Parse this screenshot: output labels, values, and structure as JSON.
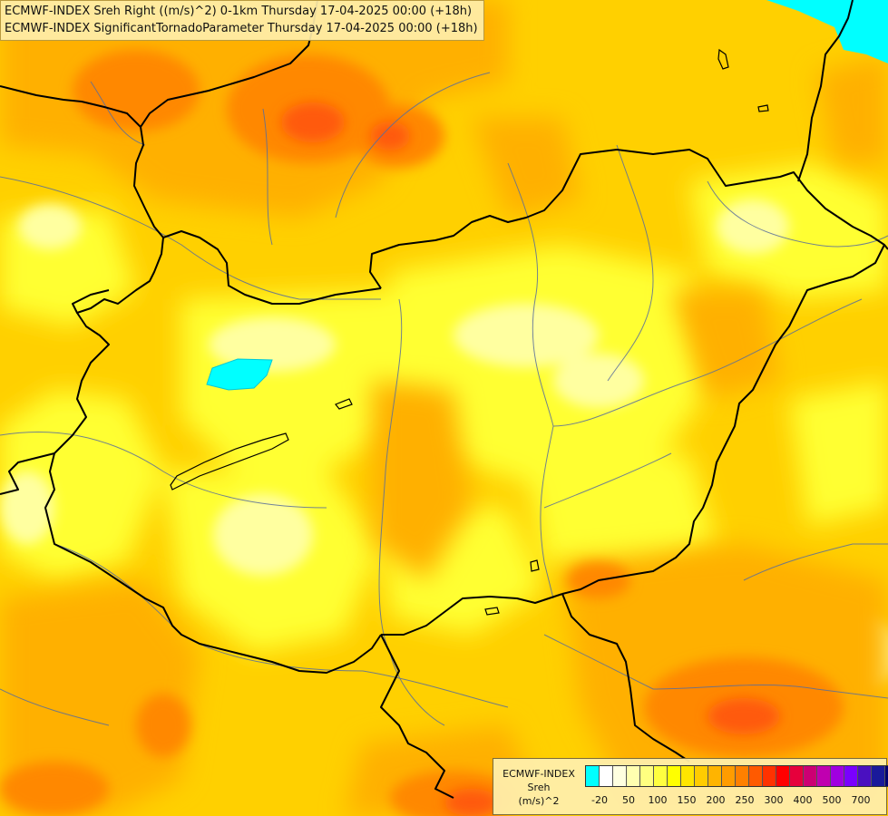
{
  "header": {
    "line1": "ECMWF-INDEX Sreh Right ((m/s)^2) 0-1km Thursday 17-04-2025 00:00 (+18h)",
    "line2": "ECMWF-INDEX SignificantTornadoParameter Thursday 17-04-2025 00:00 (+18h)"
  },
  "legend": {
    "line1": "ECMWF-INDEX",
    "line2": "Sreh",
    "line3": "(m/s)^2",
    "colors": [
      "#00ffff",
      "#ffffff",
      "#ffffe0",
      "#ffffb0",
      "#ffff80",
      "#ffff40",
      "#ffff00",
      "#ffe600",
      "#ffcc00",
      "#ffb400",
      "#ff9c00",
      "#ff8000",
      "#ff5a00",
      "#ff3200",
      "#ff0000",
      "#e6003c",
      "#cc0073",
      "#c000b0",
      "#a000e0",
      "#7a00ff",
      "#4a10c0",
      "#1a1a9a",
      "#000070"
    ],
    "ticks": [
      "-20",
      "50",
      "100",
      "150",
      "200",
      "250",
      "300",
      "400",
      "500",
      "700"
    ]
  },
  "map_colors": {
    "base": "#ffd000",
    "pale": "#ffffa0",
    "light": "#ffff30",
    "mid": "#ffb000",
    "strong": "#ff8800",
    "intense": "#ff5a10",
    "lake": "#00ffff",
    "border": "#000000",
    "river": "#5a6e9a"
  }
}
